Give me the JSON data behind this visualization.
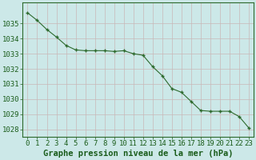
{
  "hours": [
    0,
    1,
    2,
    3,
    4,
    5,
    6,
    7,
    8,
    9,
    10,
    11,
    12,
    13,
    14,
    15,
    16,
    17,
    18,
    19,
    20,
    21,
    22,
    23
  ],
  "pressure": [
    1035.7,
    1035.2,
    1034.6,
    1034.1,
    1033.55,
    1033.25,
    1033.2,
    1033.2,
    1033.2,
    1033.15,
    1033.2,
    1033.0,
    1032.9,
    1032.15,
    1031.55,
    1030.7,
    1030.45,
    1029.85,
    1029.25,
    1029.2,
    1029.2,
    1029.2,
    1028.85,
    1028.1
  ],
  "line_color": "#2d6a2d",
  "marker_color": "#2d6a2d",
  "bg_color": "#cce8e8",
  "grid_color_h": "#c8b8b8",
  "grid_color_v": "#c8b8b8",
  "xlabel": "Graphe pression niveau de la mer (hPa)",
  "xlabel_color": "#1a5c1a",
  "tick_color": "#1a5c1a",
  "ylim_min": 1027.5,
  "ylim_max": 1036.4,
  "yticks": [
    1028,
    1029,
    1030,
    1031,
    1032,
    1033,
    1034,
    1035
  ],
  "axis_fontsize": 6.5,
  "xlabel_fontsize": 7.5
}
